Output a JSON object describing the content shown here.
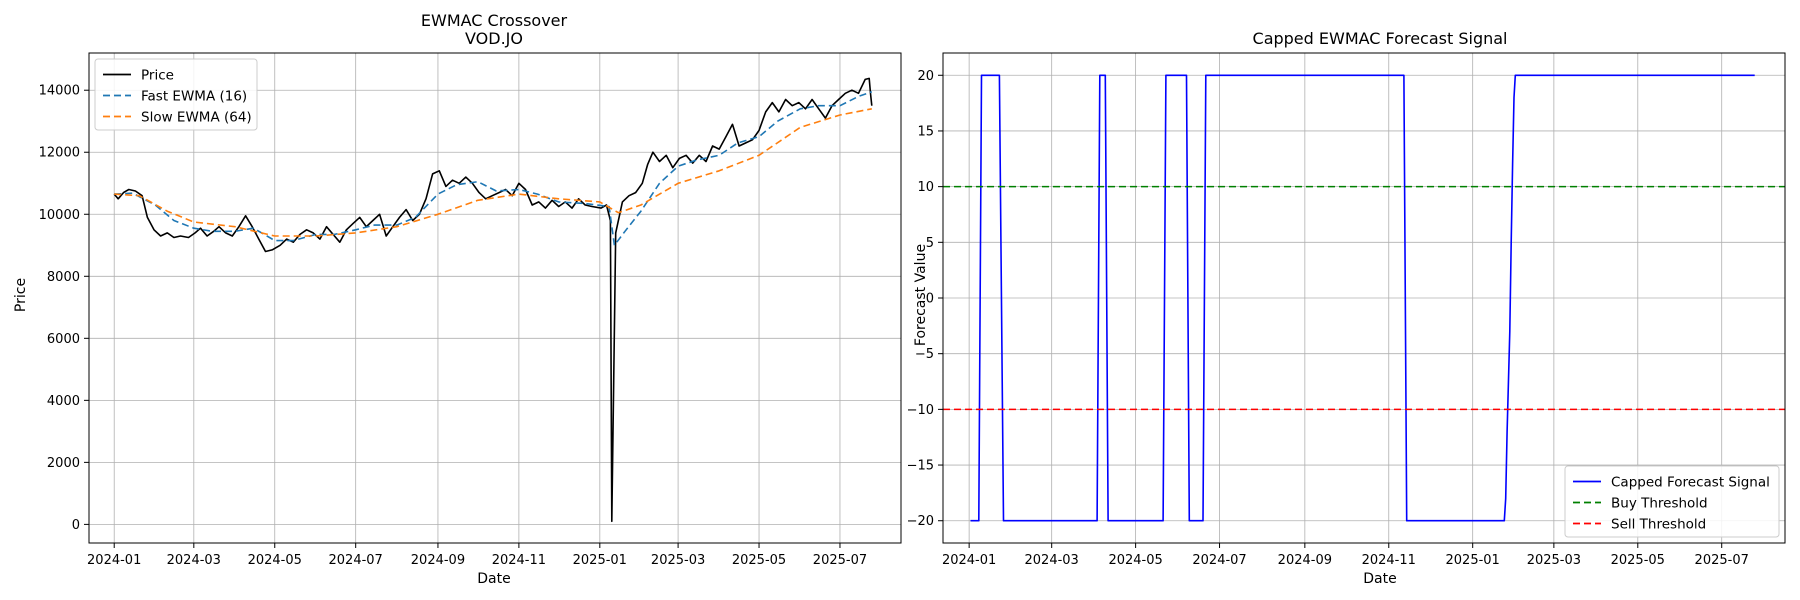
{
  "chart_data": [
    {
      "type": "line",
      "title": "EWMAC Crossover",
      "subtitle": "VOD.JO",
      "xlabel": "Date",
      "ylabel": "Price",
      "x_range": [
        "2023-12-13",
        "2025-08-16"
      ],
      "ylim": [
        -600,
        15200
      ],
      "x_ticks": [
        "2024-01",
        "2024-03",
        "2024-05",
        "2024-07",
        "2024-09",
        "2024-11",
        "2025-01",
        "2025-03",
        "2025-05",
        "2025-07"
      ],
      "y_ticks": [
        0,
        2000,
        4000,
        6000,
        8000,
        10000,
        12000,
        14000
      ],
      "grid": true,
      "legend_position": "top-left",
      "series": [
        {
          "name": "Price",
          "color": "#000000",
          "dash": "solid",
          "points": [
            [
              "2024-01-01",
              10650
            ],
            [
              "2024-01-04",
              10500
            ],
            [
              "2024-01-08",
              10700
            ],
            [
              "2024-01-12",
              10800
            ],
            [
              "2024-01-17",
              10750
            ],
            [
              "2024-01-22",
              10600
            ],
            [
              "2024-01-26",
              9900
            ],
            [
              "2024-01-31",
              9500
            ],
            [
              "2024-02-05",
              9300
            ],
            [
              "2024-02-10",
              9400
            ],
            [
              "2024-02-15",
              9250
            ],
            [
              "2024-02-20",
              9300
            ],
            [
              "2024-02-26",
              9250
            ],
            [
              "2024-03-02",
              9400
            ],
            [
              "2024-03-06",
              9550
            ],
            [
              "2024-03-11",
              9300
            ],
            [
              "2024-03-16",
              9450
            ],
            [
              "2024-03-20",
              9600
            ],
            [
              "2024-03-25",
              9400
            ],
            [
              "2024-03-30",
              9300
            ],
            [
              "2024-04-04",
              9600
            ],
            [
              "2024-04-09",
              9950
            ],
            [
              "2024-04-14",
              9600
            ],
            [
              "2024-04-19",
              9200
            ],
            [
              "2024-04-24",
              8800
            ],
            [
              "2024-04-29",
              8850
            ],
            [
              "2024-05-05",
              9000
            ],
            [
              "2024-05-10",
              9200
            ],
            [
              "2024-05-15",
              9100
            ],
            [
              "2024-05-20",
              9350
            ],
            [
              "2024-05-25",
              9500
            ],
            [
              "2024-05-30",
              9400
            ],
            [
              "2024-06-04",
              9200
            ],
            [
              "2024-06-09",
              9600
            ],
            [
              "2024-06-14",
              9350
            ],
            [
              "2024-06-19",
              9100
            ],
            [
              "2024-06-24",
              9500
            ],
            [
              "2024-06-29",
              9700
            ],
            [
              "2024-07-04",
              9900
            ],
            [
              "2024-07-09",
              9600
            ],
            [
              "2024-07-14",
              9800
            ],
            [
              "2024-07-19",
              10000
            ],
            [
              "2024-07-24",
              9300
            ],
            [
              "2024-07-29",
              9600
            ],
            [
              "2024-08-03",
              9900
            ],
            [
              "2024-08-08",
              10150
            ],
            [
              "2024-08-13",
              9800
            ],
            [
              "2024-08-18",
              10000
            ],
            [
              "2024-08-23",
              10500
            ],
            [
              "2024-08-28",
              11300
            ],
            [
              "2024-09-02",
              11400
            ],
            [
              "2024-09-07",
              10900
            ],
            [
              "2024-09-12",
              11100
            ],
            [
              "2024-09-17",
              11000
            ],
            [
              "2024-09-22",
              11200
            ],
            [
              "2024-09-27",
              11000
            ],
            [
              "2024-10-02",
              10700
            ],
            [
              "2024-10-07",
              10500
            ],
            [
              "2024-10-12",
              10600
            ],
            [
              "2024-10-17",
              10700
            ],
            [
              "2024-10-22",
              10800
            ],
            [
              "2024-10-27",
              10600
            ],
            [
              "2024-11-01",
              11000
            ],
            [
              "2024-11-06",
              10800
            ],
            [
              "2024-11-11",
              10300
            ],
            [
              "2024-11-16",
              10400
            ],
            [
              "2024-11-21",
              10200
            ],
            [
              "2024-11-26",
              10450
            ],
            [
              "2024-12-01",
              10250
            ],
            [
              "2024-12-06",
              10400
            ],
            [
              "2024-12-11",
              10200
            ],
            [
              "2024-12-16",
              10500
            ],
            [
              "2024-12-21",
              10300
            ],
            [
              "2024-12-26",
              10250
            ],
            [
              "2025-01-02",
              10200
            ],
            [
              "2025-01-06",
              10300
            ],
            [
              "2025-01-09",
              9800
            ],
            [
              "2025-01-10",
              100
            ],
            [
              "2025-01-13",
              9400
            ],
            [
              "2025-01-18",
              10400
            ],
            [
              "2025-01-23",
              10600
            ],
            [
              "2025-01-28",
              10700
            ],
            [
              "2025-02-02",
              11000
            ],
            [
              "2025-02-06",
              11600
            ],
            [
              "2025-02-10",
              12000
            ],
            [
              "2025-02-15",
              11700
            ],
            [
              "2025-02-20",
              11900
            ],
            [
              "2025-02-25",
              11500
            ],
            [
              "2025-03-02",
              11800
            ],
            [
              "2025-03-07",
              11900
            ],
            [
              "2025-03-12",
              11650
            ],
            [
              "2025-03-17",
              11900
            ],
            [
              "2025-03-22",
              11700
            ],
            [
              "2025-03-27",
              12200
            ],
            [
              "2025-04-01",
              12100
            ],
            [
              "2025-04-06",
              12500
            ],
            [
              "2025-04-11",
              12900
            ],
            [
              "2025-04-16",
              12200
            ],
            [
              "2025-04-21",
              12300
            ],
            [
              "2025-04-26",
              12400
            ],
            [
              "2025-05-01",
              12700
            ],
            [
              "2025-05-06",
              13300
            ],
            [
              "2025-05-11",
              13600
            ],
            [
              "2025-05-16",
              13300
            ],
            [
              "2025-05-21",
              13700
            ],
            [
              "2025-05-26",
              13500
            ],
            [
              "2025-05-31",
              13600
            ],
            [
              "2025-06-05",
              13400
            ],
            [
              "2025-06-10",
              13700
            ],
            [
              "2025-06-15",
              13400
            ],
            [
              "2025-06-20",
              13100
            ],
            [
              "2025-06-25",
              13500
            ],
            [
              "2025-06-30",
              13700
            ],
            [
              "2025-07-05",
              13900
            ],
            [
              "2025-07-10",
              14000
            ],
            [
              "2025-07-15",
              13900
            ],
            [
              "2025-07-20",
              14350
            ],
            [
              "2025-07-23",
              14380
            ],
            [
              "2025-07-24",
              13900
            ],
            [
              "2025-07-25",
              13500
            ]
          ]
        },
        {
          "name": "Fast EWMA (16)",
          "color": "#1f77b4",
          "dash": "dashed",
          "points": [
            [
              "2024-01-01",
              10650
            ],
            [
              "2024-01-15",
              10680
            ],
            [
              "2024-02-01",
              10300
            ],
            [
              "2024-02-15",
              9800
            ],
            [
              "2024-03-01",
              9550
            ],
            [
              "2024-03-15",
              9450
            ],
            [
              "2024-04-01",
              9450
            ],
            [
              "2024-04-15",
              9550
            ],
            [
              "2024-05-01",
              9150
            ],
            [
              "2024-05-15",
              9150
            ],
            [
              "2024-06-01",
              9350
            ],
            [
              "2024-06-15",
              9350
            ],
            [
              "2024-07-01",
              9500
            ],
            [
              "2024-07-15",
              9650
            ],
            [
              "2024-08-01",
              9650
            ],
            [
              "2024-08-15",
              9900
            ],
            [
              "2024-09-01",
              10650
            ],
            [
              "2024-09-15",
              10950
            ],
            [
              "2024-10-01",
              11050
            ],
            [
              "2024-10-15",
              10750
            ],
            [
              "2024-11-01",
              10800
            ],
            [
              "2024-11-15",
              10650
            ],
            [
              "2024-12-01",
              10400
            ],
            [
              "2024-12-20",
              10350
            ],
            [
              "2025-01-08",
              10250
            ],
            [
              "2025-01-12",
              9000
            ],
            [
              "2025-01-20",
              9450
            ],
            [
              "2025-02-01",
              10100
            ],
            [
              "2025-02-15",
              11000
            ],
            [
              "2025-03-01",
              11550
            ],
            [
              "2025-03-15",
              11750
            ],
            [
              "2025-04-01",
              11900
            ],
            [
              "2025-04-15",
              12300
            ],
            [
              "2025-05-01",
              12500
            ],
            [
              "2025-05-15",
              13000
            ],
            [
              "2025-06-01",
              13400
            ],
            [
              "2025-06-15",
              13500
            ],
            [
              "2025-07-01",
              13500
            ],
            [
              "2025-07-15",
              13800
            ],
            [
              "2025-07-25",
              13950
            ]
          ]
        },
        {
          "name": "Slow EWMA (64)",
          "color": "#ff7f0e",
          "dash": "dashed",
          "points": [
            [
              "2024-01-01",
              10650
            ],
            [
              "2024-01-20",
              10600
            ],
            [
              "2024-02-10",
              10100
            ],
            [
              "2024-03-01",
              9750
            ],
            [
              "2024-04-01",
              9600
            ],
            [
              "2024-05-01",
              9300
            ],
            [
              "2024-06-01",
              9300
            ],
            [
              "2024-07-01",
              9400
            ],
            [
              "2024-08-01",
              9600
            ],
            [
              "2024-09-01",
              10000
            ],
            [
              "2024-10-01",
              10450
            ],
            [
              "2024-11-01",
              10650
            ],
            [
              "2024-12-01",
              10500
            ],
            [
              "2025-01-01",
              10400
            ],
            [
              "2025-01-15",
              10050
            ],
            [
              "2025-02-01",
              10300
            ],
            [
              "2025-03-01",
              11000
            ],
            [
              "2025-04-01",
              11400
            ],
            [
              "2025-05-01",
              11900
            ],
            [
              "2025-06-01",
              12800
            ],
            [
              "2025-07-01",
              13200
            ],
            [
              "2025-07-25",
              13400
            ]
          ]
        }
      ]
    },
    {
      "type": "line",
      "title": "Capped EWMAC Forecast Signal",
      "xlabel": "Date",
      "ylabel": "Forecast Value",
      "x_range": [
        "2023-12-13",
        "2025-08-16"
      ],
      "ylim": [
        -22,
        22
      ],
      "x_ticks": [
        "2024-01",
        "2024-03",
        "2024-05",
        "2024-07",
        "2024-09",
        "2024-11",
        "2025-01",
        "2025-03",
        "2025-05",
        "2025-07"
      ],
      "y_ticks": [
        -20,
        -15,
        -10,
        -5,
        0,
        5,
        10,
        15,
        20
      ],
      "y_tick_labels": [
        "−20",
        "−15",
        "−10",
        "−5",
        "0",
        "5",
        "10",
        "15",
        "20"
      ],
      "grid": true,
      "legend_position": "bottom-right",
      "series": [
        {
          "name": "Capped Forecast Signal",
          "color": "#0000ff",
          "dash": "solid",
          "points": [
            [
              "2024-01-02",
              -20
            ],
            [
              "2024-01-08",
              -20
            ],
            [
              "2024-01-10",
              20
            ],
            [
              "2024-01-23",
              20
            ],
            [
              "2024-01-26",
              -20
            ],
            [
              "2024-04-03",
              -20
            ],
            [
              "2024-04-05",
              20
            ],
            [
              "2024-04-09",
              20
            ],
            [
              "2024-04-11",
              -20
            ],
            [
              "2024-05-21",
              -20
            ],
            [
              "2024-05-23",
              20
            ],
            [
              "2024-06-07",
              20
            ],
            [
              "2024-06-09",
              -20
            ],
            [
              "2024-06-19",
              -20
            ],
            [
              "2024-06-21",
              20
            ],
            [
              "2024-11-12",
              20
            ],
            [
              "2024-11-14",
              -20
            ],
            [
              "2025-01-24",
              -20
            ],
            [
              "2025-01-25",
              -18
            ],
            [
              "2025-01-26",
              -12
            ],
            [
              "2025-01-28",
              -3
            ],
            [
              "2025-01-29",
              5
            ],
            [
              "2025-01-30",
              12
            ],
            [
              "2025-01-31",
              18
            ],
            [
              "2025-02-01",
              20
            ],
            [
              "2025-07-25",
              20
            ]
          ]
        },
        {
          "name": "Buy Threshold",
          "color": "#008000",
          "dash": "dashed",
          "constant": 10
        },
        {
          "name": "Sell Threshold",
          "color": "#ff0000",
          "dash": "dashed",
          "constant": -10
        }
      ]
    }
  ]
}
